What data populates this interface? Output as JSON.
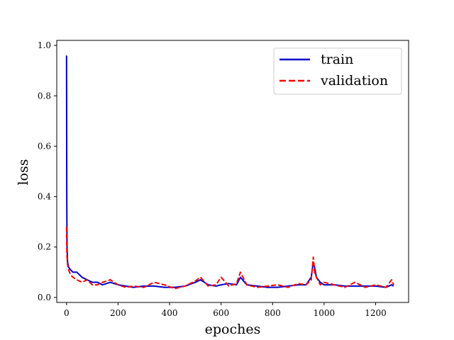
{
  "chart_data": {
    "type": "line",
    "title": "",
    "xlabel": "epoches",
    "ylabel": "loss",
    "xlim": [
      -38,
      1328
    ],
    "ylim": [
      -0.02,
      1.02
    ],
    "xticks": [
      0,
      200,
      400,
      600,
      800,
      1000,
      1200
    ],
    "yticks": [
      0.0,
      0.2,
      0.4,
      0.6,
      0.8,
      1.0
    ],
    "xtick_labels": [
      "0",
      "200",
      "400",
      "600",
      "800",
      "1000",
      "1200"
    ],
    "ytick_labels": [
      "0.0",
      "0.2",
      "0.4",
      "0.6",
      "0.8",
      "1.0"
    ],
    "grid": false,
    "legend_position": "top-right",
    "series": [
      {
        "name": "train",
        "color": "#0000cc",
        "style": "solid",
        "x": [
          0,
          1,
          2,
          4,
          8,
          15,
          25,
          40,
          60,
          80,
          100,
          120,
          140,
          170,
          200,
          230,
          260,
          300,
          340,
          380,
          420,
          460,
          500,
          520,
          550,
          580,
          600,
          630,
          660,
          675,
          700,
          740,
          780,
          820,
          860,
          900,
          930,
          950,
          958,
          963,
          970,
          985,
          1000,
          1040,
          1080,
          1120,
          1160,
          1200,
          1240,
          1262,
          1270
        ],
        "y": [
          0.96,
          0.37,
          0.2,
          0.14,
          0.12,
          0.11,
          0.1,
          0.1,
          0.08,
          0.07,
          0.06,
          0.06,
          0.05,
          0.06,
          0.05,
          0.045,
          0.04,
          0.045,
          0.045,
          0.04,
          0.04,
          0.045,
          0.06,
          0.07,
          0.05,
          0.045,
          0.05,
          0.055,
          0.05,
          0.08,
          0.05,
          0.045,
          0.04,
          0.04,
          0.045,
          0.05,
          0.05,
          0.08,
          0.14,
          0.12,
          0.08,
          0.06,
          0.05,
          0.05,
          0.045,
          0.045,
          0.045,
          0.045,
          0.04,
          0.05,
          0.045
        ]
      },
      {
        "name": "validation",
        "color": "#ff0000",
        "style": "dashed",
        "x": [
          0,
          1,
          2,
          4,
          8,
          15,
          25,
          40,
          60,
          80,
          100,
          120,
          140,
          170,
          200,
          230,
          260,
          300,
          340,
          380,
          420,
          460,
          500,
          520,
          550,
          580,
          600,
          630,
          660,
          675,
          700,
          740,
          780,
          820,
          860,
          900,
          930,
          950,
          958,
          963,
          970,
          985,
          1000,
          1040,
          1080,
          1120,
          1160,
          1200,
          1240,
          1262,
          1270
        ],
        "y": [
          0.28,
          0.19,
          0.16,
          0.13,
          0.11,
          0.09,
          0.08,
          0.07,
          0.06,
          0.07,
          0.05,
          0.05,
          0.06,
          0.07,
          0.05,
          0.04,
          0.045,
          0.04,
          0.06,
          0.05,
          0.035,
          0.045,
          0.065,
          0.08,
          0.045,
          0.05,
          0.08,
          0.045,
          0.055,
          0.1,
          0.05,
          0.04,
          0.045,
          0.05,
          0.04,
          0.055,
          0.05,
          0.07,
          0.16,
          0.1,
          0.08,
          0.05,
          0.06,
          0.05,
          0.04,
          0.06,
          0.04,
          0.05,
          0.04,
          0.07,
          0.05
        ]
      }
    ]
  }
}
